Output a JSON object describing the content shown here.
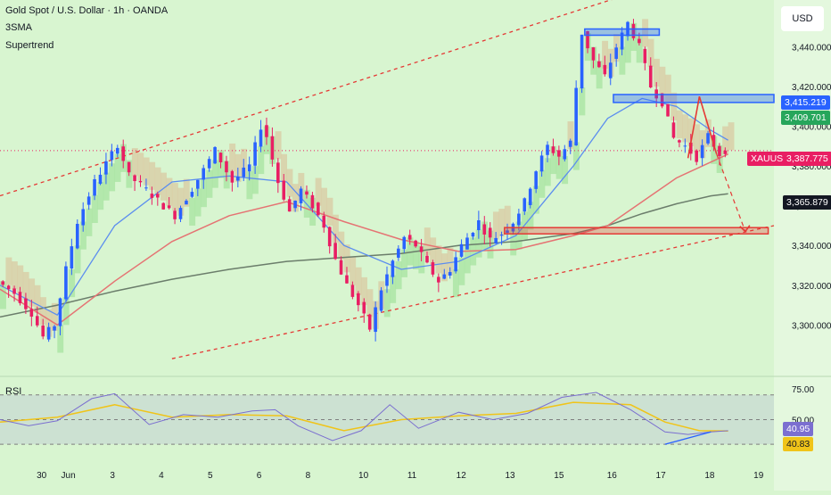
{
  "header": {
    "title": "Gold Spot / U.S. Dollar · 1h · OANDA",
    "indicator_1": "3SMA",
    "indicator_2": "Supertrend",
    "currency_button": "USD"
  },
  "rsi_panel": {
    "label": "RSI"
  },
  "price_tags": {
    "level_high": "3,415.219",
    "level_sma": "3,409.701",
    "symbol": "XAUUSD",
    "current": "3,387.775",
    "sma_long": "3,365.879"
  },
  "rsi_tags": {
    "rsi": "40.95",
    "rsi_ma": "40.83"
  },
  "colors": {
    "background": "#d8f5d0",
    "up_candle": "#2962ff",
    "down_candle": "#e91e63",
    "sma_fast": "#5b8def",
    "sma_mid": "#e57373",
    "sma_slow": "#6b7d6b",
    "supertrend_up": "#a7e3a0",
    "supertrend_down": "#d9c9a3",
    "zone_blue": "#2962ff",
    "zone_red": "#e53935",
    "rsi_line": "#7b6fd0",
    "rsi_ma": "#f0c419"
  },
  "chart_data": [
    {
      "type": "candlestick",
      "title": "Gold Spot / U.S. Dollar · 1h · OANDA",
      "ylabel": "USD",
      "ylim": [
        3275,
        3460
      ],
      "y_ticks": [
        "3,440.000",
        "3,420.000",
        "3,400.000",
        "3,380.000",
        "3,360.000",
        "3,340.000",
        "3,320.000",
        "3,300.000"
      ],
      "y_tick_values": [
        3440,
        3420,
        3400,
        3380,
        3360,
        3340,
        3320,
        3300
      ],
      "x_ticks": [
        "30",
        "Jun",
        "3",
        "4",
        "5",
        "6",
        "8",
        "10",
        "11",
        "12",
        "13",
        "15",
        "16",
        "17",
        "18",
        "19"
      ],
      "price_path": [
        [
          0,
          3322
        ],
        [
          3,
          3316
        ],
        [
          6,
          3306
        ],
        [
          8,
          3294
        ],
        [
          10,
          3300
        ],
        [
          12,
          3328
        ],
        [
          14,
          3352
        ],
        [
          17,
          3372
        ],
        [
          20,
          3386
        ],
        [
          21,
          3391
        ],
        [
          23,
          3375
        ],
        [
          26,
          3368
        ],
        [
          29,
          3360
        ],
        [
          31,
          3355
        ],
        [
          33,
          3364
        ],
        [
          36,
          3378
        ],
        [
          38,
          3388
        ],
        [
          41,
          3372
        ],
        [
          44,
          3380
        ],
        [
          46,
          3400
        ],
        [
          47,
          3395
        ],
        [
          49,
          3372
        ],
        [
          51,
          3357
        ],
        [
          53,
          3368
        ],
        [
          55,
          3360
        ],
        [
          57,
          3350
        ],
        [
          59,
          3333
        ],
        [
          61,
          3320
        ],
        [
          63,
          3310
        ],
        [
          65,
          3298
        ],
        [
          67,
          3318
        ],
        [
          69,
          3332
        ],
        [
          71,
          3344
        ],
        [
          73,
          3340
        ],
        [
          75,
          3330
        ],
        [
          77,
          3322
        ],
        [
          79,
          3328
        ],
        [
          81,
          3340
        ],
        [
          84,
          3352
        ],
        [
          86,
          3343
        ],
        [
          88,
          3346
        ],
        [
          90,
          3352
        ],
        [
          92,
          3362
        ],
        [
          94,
          3378
        ],
        [
          96,
          3390
        ],
        [
          98,
          3385
        ],
        [
          100,
          3392
        ],
        [
          102,
          3447
        ],
        [
          104,
          3433
        ],
        [
          106,
          3425
        ],
        [
          108,
          3440
        ],
        [
          110,
          3452
        ],
        [
          112,
          3440
        ],
        [
          114,
          3420
        ],
        [
          116,
          3412
        ],
        [
          118,
          3394
        ],
        [
          120,
          3390
        ],
        [
          122,
          3384
        ],
        [
          124,
          3395
        ],
        [
          126,
          3386
        ],
        [
          127,
          3388
        ]
      ],
      "sma_fast": [
        [
          0,
          3320
        ],
        [
          10,
          3305
        ],
        [
          20,
          3350
        ],
        [
          30,
          3372
        ],
        [
          40,
          3375
        ],
        [
          50,
          3372
        ],
        [
          60,
          3340
        ],
        [
          70,
          3328
        ],
        [
          80,
          3332
        ],
        [
          90,
          3345
        ],
        [
          100,
          3380
        ],
        [
          106,
          3404
        ],
        [
          112,
          3414
        ],
        [
          118,
          3410
        ],
        [
          124,
          3398
        ],
        [
          127,
          3393
        ]
      ],
      "sma_mid": [
        [
          0,
          3318
        ],
        [
          10,
          3300
        ],
        [
          20,
          3322
        ],
        [
          30,
          3342
        ],
        [
          40,
          3355
        ],
        [
          50,
          3362
        ],
        [
          60,
          3352
        ],
        [
          70,
          3343
        ],
        [
          80,
          3337
        ],
        [
          90,
          3338
        ],
        [
          100,
          3345
        ],
        [
          106,
          3350
        ],
        [
          112,
          3362
        ],
        [
          118,
          3374
        ],
        [
          124,
          3382
        ],
        [
          127,
          3386
        ]
      ],
      "sma_slow": [
        [
          0,
          3304
        ],
        [
          10,
          3310
        ],
        [
          20,
          3317
        ],
        [
          30,
          3323
        ],
        [
          40,
          3328
        ],
        [
          50,
          3332
        ],
        [
          60,
          3334
        ],
        [
          70,
          3336
        ],
        [
          80,
          3340
        ],
        [
          90,
          3342
        ],
        [
          100,
          3346
        ],
        [
          106,
          3350
        ],
        [
          112,
          3356
        ],
        [
          118,
          3361
        ],
        [
          124,
          3365
        ],
        [
          127,
          3366
        ]
      ],
      "channel_upper": [
        [
          0,
          3365
        ],
        [
          135,
          3490
        ]
      ],
      "channel_lower": [
        [
          30,
          3283
        ],
        [
          135,
          3350
        ]
      ],
      "zones": [
        {
          "color": "blue",
          "x": [
            102,
            115
          ],
          "y": [
            3447,
            3449
          ]
        },
        {
          "color": "blue",
          "x": [
            107,
            135
          ],
          "y": [
            3412,
            3416
          ]
        },
        {
          "color": "red",
          "x": [
            88,
            134
          ],
          "y": [
            3347,
            3349
          ]
        }
      ],
      "projection": {
        "solid": [
          [
            120,
            3384
          ],
          [
            122,
            3415
          ],
          [
            125,
            3386
          ]
        ],
        "dashed": [
          [
            125,
            3386
          ],
          [
            130,
            3347
          ]
        ]
      },
      "current_price": 3387.775,
      "labels": {
        "XAUUSD": 3387.775,
        "3,415.219": 3415.219,
        "3,409.701": 3409.701,
        "3,365.879": 3365.879
      }
    },
    {
      "type": "line",
      "title": "RSI",
      "ylim": [
        20,
        85
      ],
      "y_ticks": [
        "75.00",
        "50.00"
      ],
      "y_tick_values": [
        75,
        50
      ],
      "band": [
        30,
        70
      ],
      "series": [
        {
          "values": [
            [
              0,
              50
            ],
            [
              5,
              45
            ],
            [
              10,
              49
            ],
            [
              16,
              67
            ],
            [
              20,
              71
            ],
            [
              26,
              46
            ],
            [
              32,
              54
            ],
            [
              38,
              52
            ],
            [
              44,
              57
            ],
            [
              48,
              58
            ],
            [
              52,
              45
            ],
            [
              58,
              33
            ],
            [
              63,
              41
            ],
            [
              68,
              62
            ],
            [
              73,
              43
            ],
            [
              80,
              56
            ],
            [
              86,
              50
            ],
            [
              92,
              55
            ],
            [
              98,
              68
            ],
            [
              104,
              72
            ],
            [
              110,
              58
            ],
            [
              116,
              40
            ],
            [
              120,
              38
            ],
            [
              124,
              40
            ],
            [
              127,
              41
            ]
          ]
        },
        {
          "values": [
            [
              0,
              48
            ],
            [
              10,
              52
            ],
            [
              20,
              62
            ],
            [
              30,
              52
            ],
            [
              40,
              54
            ],
            [
              50,
              53
            ],
            [
              60,
              41
            ],
            [
              70,
              50
            ],
            [
              80,
              53
            ],
            [
              90,
              55
            ],
            [
              100,
              64
            ],
            [
              110,
              62
            ],
            [
              116,
              48
            ],
            [
              122,
              41
            ],
            [
              127,
              40.8
            ]
          ]
        }
      ],
      "current_rsi": 40.95,
      "current_ma": 40.83
    }
  ]
}
